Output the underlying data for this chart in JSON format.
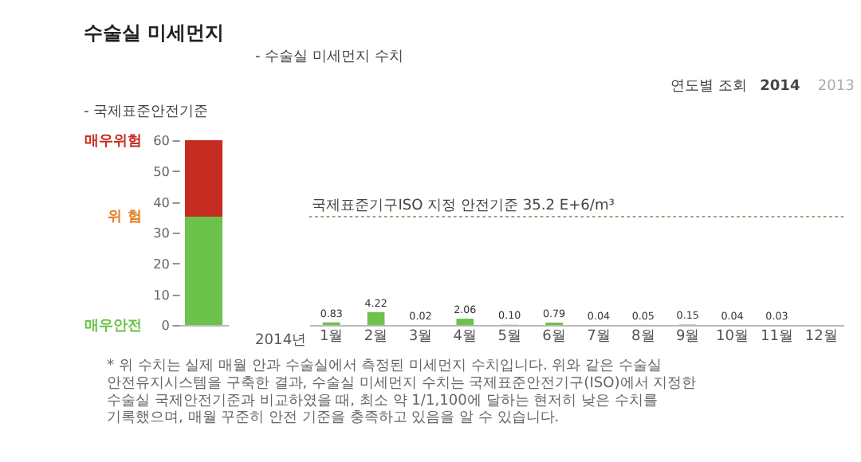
{
  "chart_data": [
    {
      "type": "bar",
      "title": "수술실 미세먼지",
      "subtitle": "- 국제표준안전기준",
      "stacked": true,
      "categories": [
        null
      ],
      "series": [
        {
          "color": "#6cc24a",
          "values": [
            35.2
          ]
        },
        {
          "color": "#c62d22",
          "values": [
            24.8
          ]
        }
      ],
      "ylim": [
        0,
        60
      ],
      "yticks": [
        0,
        10,
        20,
        30,
        40,
        50,
        60
      ],
      "tick_labels": "y",
      "grid": false,
      "annotations": [
        "매우위험",
        "위  험",
        "매우안전"
      ]
    },
    {
      "type": "bar",
      "title": "- 수술실 미세먼지 수치",
      "categories": [
        "1월",
        "2월",
        "3월",
        "4월",
        "5월",
        "6월",
        "7월",
        "8월",
        "9월",
        "10월",
        "11월",
        "12월"
      ],
      "values": [
        0.83,
        4.22,
        0.02,
        2.06,
        0.1,
        0.79,
        0.04,
        0.05,
        0.15,
        0.04,
        0.03,
        null
      ],
      "color": "#6cc24a",
      "value_labels": [
        "0.83",
        "4.22",
        "0.02",
        "2.06",
        "0.10",
        "0.79",
        "0.04",
        "0.05",
        "0.15",
        "0.04",
        "0.03",
        null
      ],
      "ylim": [
        0,
        60
      ],
      "tick_labels": "x",
      "grid": false,
      "ref_lines": [
        {
          "axis": "y",
          "value": 35.2,
          "label": "국제표준기구ISO 지정 안전기준 35.2 E+6/m³",
          "color": "#8faa7a",
          "line_style": "dotted"
        }
      ],
      "annotations": [
        "2014년",
        "연도별 조회",
        "2014",
        "2013",
        "* 위 수치는 실제 매월 안과 수술실에서 측정된 미세먼지 수치입니다. 위와 같은 수술실 안전유지시스템을 구축한 결과, 수술실 미세먼지 수치는 국제표준안전기구(ISO)에서 지정한 수술실 국제안전기준과 비교하였을 때, 최소 약 1/1,100에 달하는 현저히 낮은 수치를 기록했으며, 매월 꾸준히 안전 기준을 충족하고 있음을 알 수 있습니다."
      ]
    }
  ]
}
